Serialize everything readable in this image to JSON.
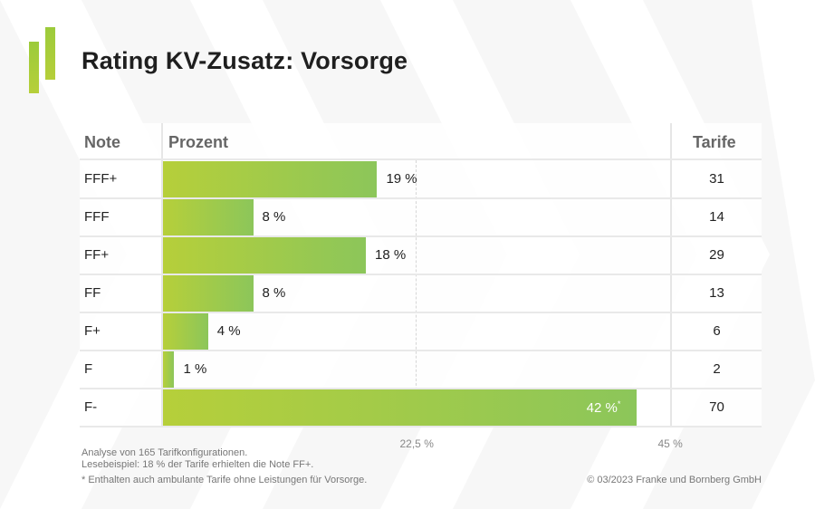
{
  "title": "Rating KV-Zusatz: Vorsorge",
  "headers": {
    "note": "Note",
    "prozent": "Prozent",
    "tarife": "Tarife"
  },
  "chart_data": {
    "type": "bar",
    "orientation": "horizontal",
    "categories": [
      "FFF+",
      "FFF",
      "FF+",
      "FF",
      "F+",
      "F",
      "F-"
    ],
    "values": [
      19,
      8,
      18,
      8,
      4,
      1,
      42
    ],
    "value_labels": [
      "19 %",
      "8 %",
      "18 %",
      "8 %",
      "4 %",
      "1 %",
      "42 %"
    ],
    "tarife": [
      "31",
      "14",
      "29",
      "13",
      "6",
      "2",
      "70"
    ],
    "xlim": [
      0,
      45
    ],
    "ticks": [
      {
        "value": 22.5,
        "label": "22,5 %"
      },
      {
        "value": 45,
        "label": "45 %"
      }
    ],
    "footnote_marker_index": 6,
    "footnote_marker": "*",
    "colors": {
      "bar_start": "#b6cf3a",
      "bar_end": "#8cc65a",
      "inside_label": "#ffffff"
    }
  },
  "footer": {
    "line1": "Analyse von 165 Tarifkonfigurationen.",
    "line2": "Lesebeispiel: 18 % der Tarife erhielten die Note FF+.",
    "line3": "* Enthalten auch ambulante Tarife ohne Leistungen für Vorsorge.",
    "copyright": "© 03/2023 Franke und Bornberg GmbH"
  }
}
